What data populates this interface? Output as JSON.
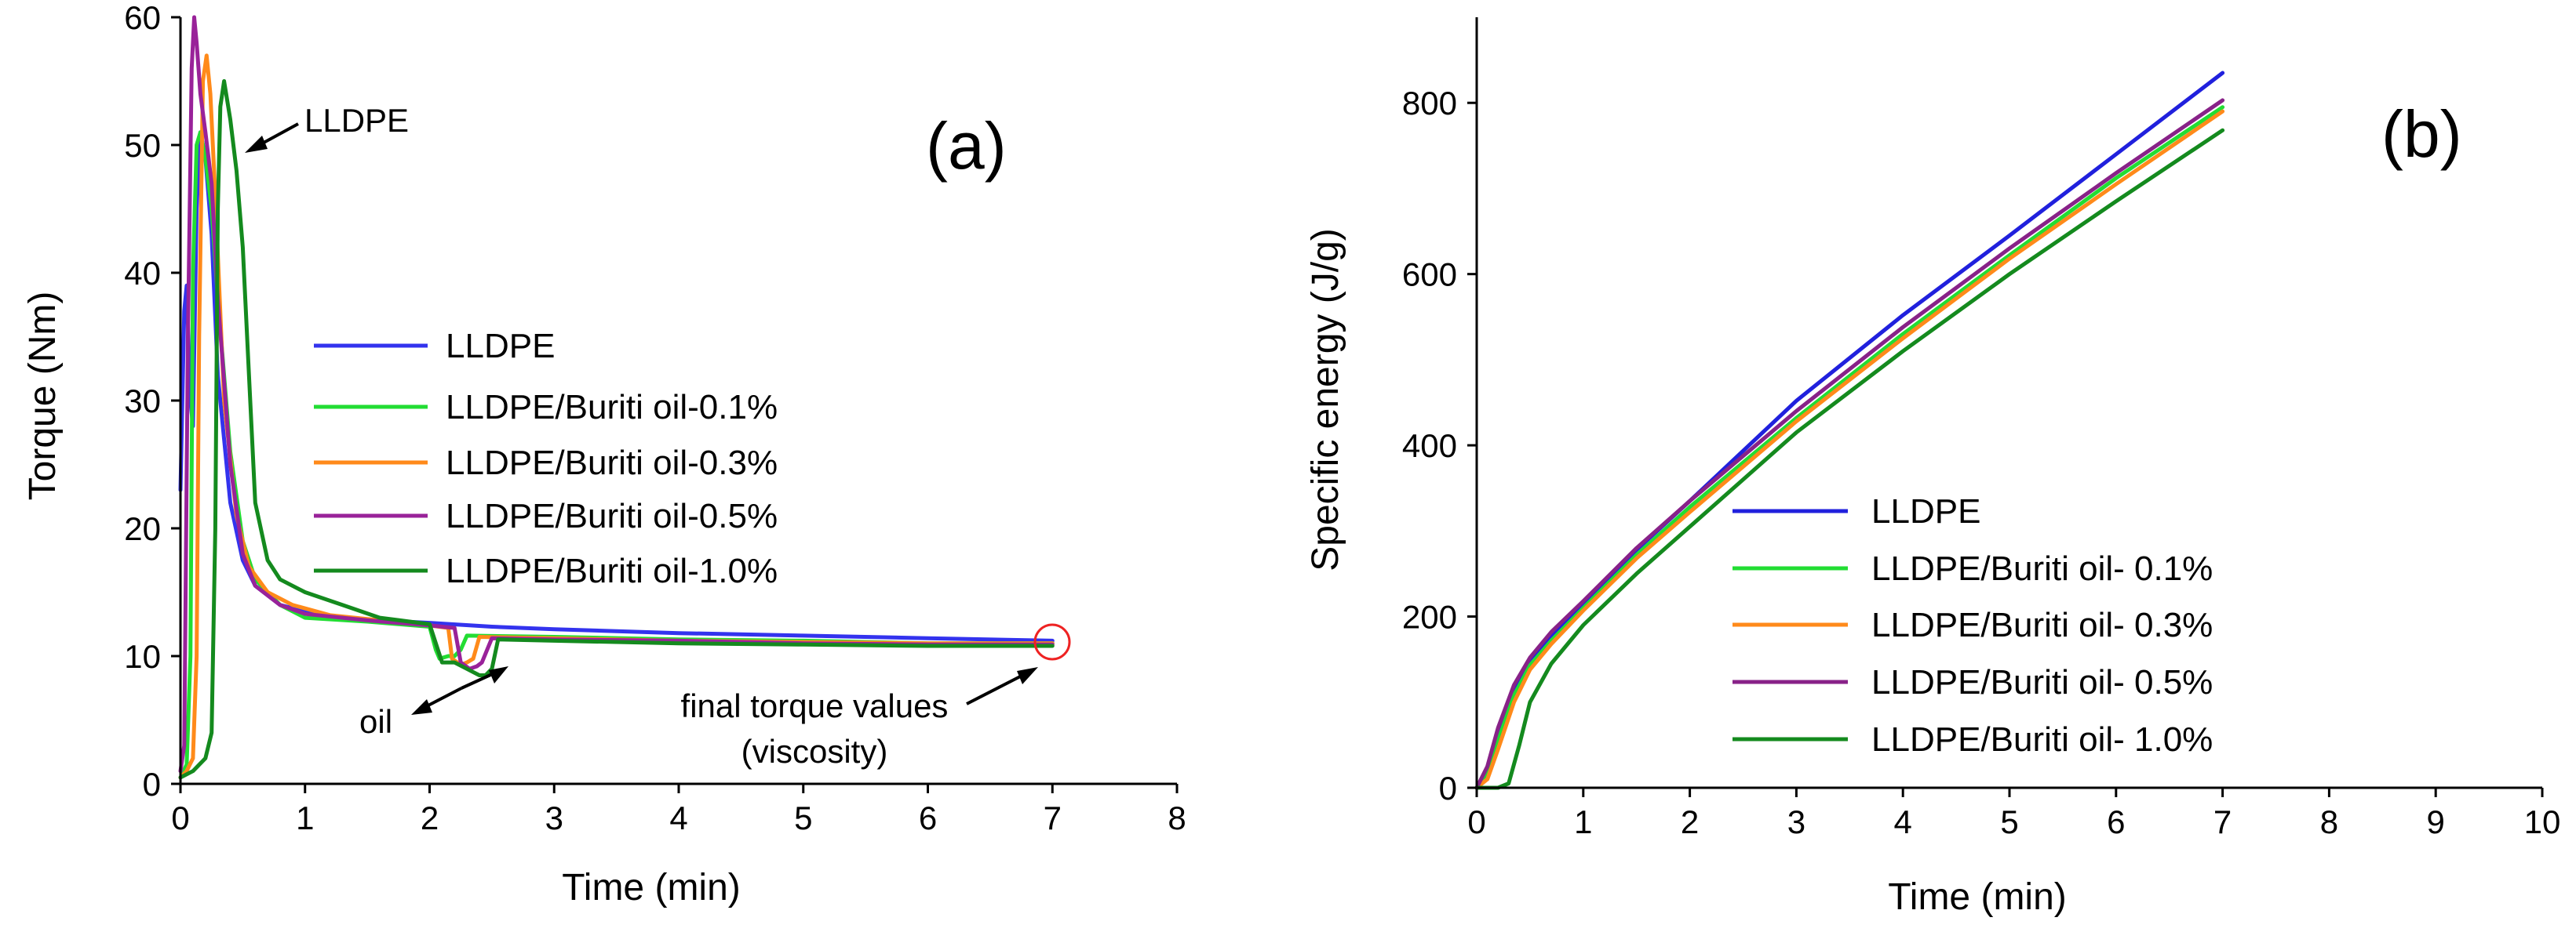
{
  "chart_data": [
    {
      "type": "line",
      "panel": "(a)",
      "xlabel": "Time (min)",
      "ylabel": "Torque (Nm)",
      "xlim": [
        0,
        8
      ],
      "ylim": [
        0,
        60
      ],
      "xticks": [
        0,
        1,
        2,
        3,
        4,
        5,
        6,
        7,
        8
      ],
      "yticks": [
        0,
        10,
        20,
        30,
        40,
        50,
        60
      ],
      "grid": false,
      "legend_position": "center-right",
      "series": [
        {
          "name": "LLDPE",
          "color": "#3333ee",
          "x": [
            0.0,
            0.03,
            0.05,
            0.08,
            0.1,
            0.13,
            0.16,
            0.2,
            0.25,
            0.3,
            0.4,
            0.5,
            0.6,
            0.8,
            1.0,
            1.3,
            1.6,
            2.0,
            2.5,
            3.0,
            4.0,
            5.0,
            6.0,
            7.0
          ],
          "y": [
            23,
            37,
            39,
            30,
            28,
            45,
            51,
            49,
            43,
            32,
            22,
            17.5,
            15.5,
            14,
            13.5,
            13,
            12.8,
            12.6,
            12.3,
            12.1,
            11.8,
            11.6,
            11.4,
            11.2
          ]
        },
        {
          "name": "LLDPE/Buriti oil-0.1%",
          "color": "#22dd33",
          "x": [
            0.0,
            0.05,
            0.08,
            0.1,
            0.13,
            0.16,
            0.2,
            0.25,
            0.3,
            0.4,
            0.5,
            0.6,
            0.8,
            1.0,
            1.5,
            2.0,
            2.05,
            2.08,
            2.15,
            2.2,
            2.25,
            2.3,
            3.0,
            4.0,
            5.0,
            6.0,
            7.0
          ],
          "y": [
            0.5,
            1.5,
            10,
            40,
            50,
            51,
            49,
            45,
            38,
            26,
            19,
            16,
            14,
            13,
            12.7,
            12.3,
            10.5,
            9.8,
            10,
            10,
            10.5,
            11.6,
            11.5,
            11.3,
            11.2,
            11.0,
            11.0
          ]
        },
        {
          "name": "LLDPE/Buriti oil-0.3%",
          "color": "#ff8a1a",
          "x": [
            0.0,
            0.05,
            0.1,
            0.13,
            0.15,
            0.18,
            0.21,
            0.24,
            0.28,
            0.35,
            0.45,
            0.55,
            0.7,
            0.9,
            1.2,
            1.6,
            2.0,
            2.15,
            2.18,
            2.25,
            2.3,
            2.35,
            2.4,
            3.0,
            4.0,
            5.0,
            6.0,
            7.0
          ],
          "y": [
            0.5,
            1,
            2,
            10,
            35,
            55,
            57,
            54,
            46,
            30,
            21,
            17,
            15,
            14,
            13.2,
            12.8,
            12.4,
            12.2,
            9.8,
            9.3,
            9.5,
            9.8,
            11.5,
            11.4,
            11.2,
            11.1,
            11.0,
            11.0
          ]
        },
        {
          "name": "LLDPE/Buriti oil-0.5%",
          "color": "#992299",
          "x": [
            0.0,
            0.03,
            0.06,
            0.09,
            0.11,
            0.13,
            0.16,
            0.2,
            0.25,
            0.3,
            0.4,
            0.5,
            0.6,
            0.8,
            1.0,
            1.5,
            2.0,
            2.2,
            2.25,
            2.32,
            2.38,
            2.42,
            2.5,
            3.0,
            4.0,
            5.0,
            6.0,
            7.0
          ],
          "y": [
            1,
            3,
            35,
            56,
            60,
            58,
            54,
            51,
            47,
            38,
            25,
            18,
            15.5,
            14,
            13.3,
            12.8,
            12.4,
            12.2,
            9.5,
            9.0,
            9.2,
            9.5,
            11.4,
            11.3,
            11.2,
            11.0,
            10.9,
            10.9
          ]
        },
        {
          "name": "LLDPE/Buriti oil-1.0%",
          "color": "#148a1e",
          "x": [
            0.0,
            0.1,
            0.2,
            0.25,
            0.28,
            0.3,
            0.32,
            0.35,
            0.4,
            0.45,
            0.5,
            0.55,
            0.6,
            0.7,
            0.8,
            1.0,
            1.3,
            1.6,
            2.0,
            2.1,
            2.2,
            2.3,
            2.4,
            2.45,
            2.5,
            2.55,
            3.0,
            4.0,
            5.0,
            6.0,
            7.0
          ],
          "y": [
            0.5,
            1,
            2,
            4,
            20,
            45,
            53,
            55,
            52,
            48,
            42,
            32,
            22,
            17.5,
            16,
            15,
            14,
            13,
            12.5,
            9.5,
            9.5,
            9.0,
            8.5,
            8.5,
            9,
            11.3,
            11.2,
            11.0,
            10.9,
            10.8,
            10.8
          ]
        }
      ],
      "annotations": [
        {
          "text": "LLDPE",
          "x": 1.0,
          "y": 53,
          "arrow_to": [
            0.55,
            50
          ]
        },
        {
          "text": "oil",
          "x": 1.65,
          "y": 5,
          "arrow_to": [
            2.25,
            8.5
          ]
        },
        {
          "text": "final torque values",
          "x": 6.45,
          "y": 4.5,
          "arrow_to": [
            6.95,
            7.5
          ]
        },
        {
          "text": "(viscosity)",
          "x": 6.45,
          "y": 1.0
        }
      ],
      "highlight": {
        "shape": "circle",
        "x": 7.0,
        "y": 11,
        "color": "#ee2222"
      }
    },
    {
      "type": "line",
      "panel": "(b)",
      "xlabel": "Time (min)",
      "ylabel": "Specific energy (J/g)",
      "xlim": [
        0,
        10
      ],
      "ylim": [
        0,
        900
      ],
      "xticks": [
        0,
        1,
        2,
        3,
        4,
        5,
        6,
        7,
        8,
        9,
        10
      ],
      "yticks": [
        0,
        200,
        400,
        600,
        800
      ],
      "grid": false,
      "legend_position": "bottom-center",
      "series": [
        {
          "name": "LLDPE",
          "color": "#2020dd",
          "x": [
            0.0,
            0.1,
            0.2,
            0.35,
            0.5,
            0.7,
            1.0,
            1.5,
            2.0,
            3.0,
            4.0,
            5.0,
            6.0,
            7.0
          ],
          "y": [
            0,
            20,
            60,
            115,
            150,
            178,
            215,
            278,
            335,
            452,
            552,
            645,
            740,
            835
          ]
        },
        {
          "name": "LLDPE/Buriti oil- 0.1%",
          "color": "#22dd33",
          "x": [
            0.0,
            0.1,
            0.2,
            0.35,
            0.5,
            0.7,
            1.0,
            1.5,
            2.0,
            3.0,
            4.0,
            5.0,
            6.0,
            7.0
          ],
          "y": [
            0,
            15,
            55,
            108,
            143,
            172,
            210,
            272,
            328,
            432,
            530,
            622,
            712,
            795
          ]
        },
        {
          "name": "LLDPE/Buriti oil- 0.3%",
          "color": "#ff8a1a",
          "x": [
            0.0,
            0.1,
            0.2,
            0.35,
            0.5,
            0.7,
            1.0,
            1.5,
            2.0,
            3.0,
            4.0,
            5.0,
            6.0,
            7.0
          ],
          "y": [
            0,
            10,
            45,
            100,
            138,
            168,
            207,
            268,
            322,
            428,
            525,
            618,
            705,
            790
          ]
        },
        {
          "name": "LLDPE/Buriti oil- 0.5%",
          "color": "#882288",
          "x": [
            0.0,
            0.1,
            0.2,
            0.35,
            0.5,
            0.7,
            1.0,
            1.5,
            2.0,
            3.0,
            4.0,
            5.0,
            6.0,
            7.0
          ],
          "y": [
            0,
            25,
            70,
            120,
            152,
            182,
            218,
            280,
            335,
            440,
            538,
            630,
            718,
            803
          ]
        },
        {
          "name": "LLDPE/Buriti oil- 1.0%",
          "color": "#148a1e",
          "x": [
            0.0,
            0.1,
            0.2,
            0.3,
            0.4,
            0.5,
            0.7,
            1.0,
            1.5,
            2.0,
            3.0,
            4.0,
            5.0,
            6.0,
            7.0
          ],
          "y": [
            0,
            0,
            0,
            5,
            50,
            100,
            145,
            190,
            250,
            305,
            415,
            510,
            600,
            685,
            768
          ]
        }
      ]
    }
  ]
}
